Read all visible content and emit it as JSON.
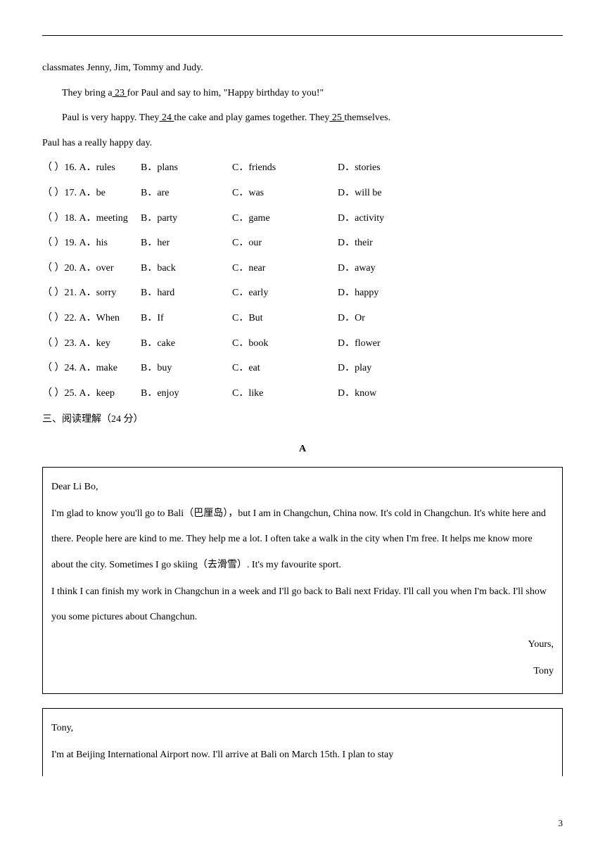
{
  "paragraphs": {
    "line1": "classmates Jenny, Jim, Tommy and Judy.",
    "line2_pre": "They bring a",
    "line2_blank": "   23   ",
    "line2_post": "for Paul and say to him, \"Happy birthday to you!\"",
    "line3_pre": "Paul is very happy. They",
    "line3_blank1": "   24   ",
    "line3_mid": "the cake and play games together. They",
    "line3_blank2": "   25   ",
    "line3_post": "themselves.",
    "line4": "Paul has a really happy day."
  },
  "questions": [
    {
      "num": "（    ）16. A．rules",
      "b": "B．plans",
      "c": "C．friends",
      "d": "D．stories"
    },
    {
      "num": "（    ）17. A．be",
      "b": "B．are",
      "c": "C．was",
      "d": "D．will be"
    },
    {
      "num": "（    ）18. A．meeting",
      "b": "B．party",
      "c": "C．game",
      "d": "D．activity"
    },
    {
      "num": "（    ）19. A．his",
      "b": "B．her",
      "c": "C．our",
      "d": "D．their"
    },
    {
      "num": "（    ）20. A．over",
      "b": "B．back",
      "c": "C．near",
      "d": "D．away"
    },
    {
      "num": "（    ）21. A．sorry",
      "b": "B．hard",
      "c": "C．early",
      "d": "D．happy"
    },
    {
      "num": "（    ）22. A．When",
      "b": "B．If",
      "c": "C．But",
      "d": "D．Or"
    },
    {
      "num": "（    ）23. A．key",
      "b": "B．cake",
      "c": "C．book",
      "d": "D．flower"
    },
    {
      "num": "（    ）24. A．make",
      "b": "B．buy",
      "c": "C．eat",
      "d": "D．play"
    },
    {
      "num": "（    ）25. A．keep",
      "b": "B．enjoy",
      "c": "C．like",
      "d": "D．know"
    }
  ],
  "section_title": "三、阅读理解（24 分）",
  "passage_label": "A",
  "letter1": {
    "greeting": "Dear Li Bo,",
    "body1": "I'm glad to know you'll go to Bali（巴厘岛），but I am in Changchun, China now. It's cold in Changchun. It's white here and there. People here are kind to me. They help me a lot. I often take a walk in the city when I'm free. It helps me know more about the city. Sometimes I go skiing（去滑雪）. It's my favourite sport.",
    "body2": "I think I can finish my work in Changchun in a week and I'll go back to Bali next Friday. I'll call you when I'm back. I'll show you some pictures about Changchun.",
    "closing": "Yours,",
    "signature": "Tony"
  },
  "letter2": {
    "greeting": "Tony,",
    "body1": "I'm at Beijing International Airport now. I'll arrive at Bali on March 15th. I plan to stay"
  },
  "page_number": "3"
}
